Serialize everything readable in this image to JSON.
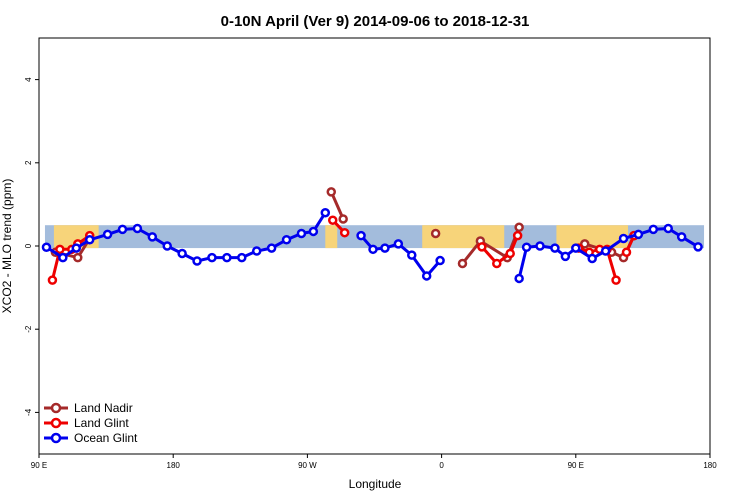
{
  "chart_data": {
    "type": "line",
    "title": "0-10N April (Ver 9)   2014-09-06 to 2018-12-31",
    "xlabel": "Longitude",
    "ylabel": "XCO2 - MLO trend (ppm)",
    "xlim": [
      0,
      45
    ],
    "ylim": [
      -5,
      5
    ],
    "x_ticks": [
      {
        "pos": 0,
        "label": "90 E"
      },
      {
        "pos": 9,
        "label": "180"
      },
      {
        "pos": 18,
        "label": "90 W"
      },
      {
        "pos": 27,
        "label": "0"
      },
      {
        "pos": 36,
        "label": "90 E"
      },
      {
        "pos": 45,
        "label": "180"
      }
    ],
    "y_ticks": [
      -4,
      -2,
      0,
      2,
      4
    ],
    "band": {
      "ymin": -0.05,
      "ymax": 0.5,
      "ocean_color": "#a3bcdc",
      "land_color": "#f7d47a"
    },
    "land_segments": [
      [
        1.0,
        4.0
      ],
      [
        19.2,
        20.0
      ],
      [
        25.7,
        31.2
      ],
      [
        34.7,
        39.5
      ]
    ],
    "legend_position": "bottom-left",
    "series": [
      {
        "name": "Land Nadir",
        "color": "#a52a2a",
        "segments": [
          [
            [
              1.1,
              -0.15
            ],
            [
              2.6,
              -0.28
            ],
            [
              3.4,
              0.18
            ]
          ],
          [
            [
              19.6,
              1.3
            ],
            [
              20.4,
              0.65
            ]
          ],
          [
            [
              26.6,
              0.3
            ]
          ],
          [
            [
              28.4,
              -0.42
            ],
            [
              29.6,
              0.12
            ],
            [
              31.4,
              -0.28
            ],
            [
              32.2,
              0.45
            ]
          ],
          [
            [
              36.6,
              0.05
            ],
            [
              38.4,
              -0.15
            ],
            [
              39.2,
              -0.28
            ],
            [
              39.9,
              0.25
            ]
          ]
        ]
      },
      {
        "name": "Land Glint",
        "color": "#ee0000",
        "segments": [
          [
            [
              0.9,
              -0.82
            ],
            [
              1.4,
              -0.08
            ],
            [
              2.2,
              -0.08
            ],
            [
              2.6,
              0.05
            ],
            [
              3.4,
              0.25
            ]
          ],
          [
            [
              19.7,
              0.62
            ],
            [
              20.5,
              0.32
            ]
          ],
          [
            [
              29.7,
              -0.02
            ],
            [
              30.7,
              -0.42
            ],
            [
              31.6,
              -0.18
            ],
            [
              32.1,
              0.25
            ]
          ],
          [
            [
              36.2,
              -0.05
            ],
            [
              36.9,
              -0.15
            ],
            [
              37.6,
              -0.08
            ],
            [
              38.1,
              -0.08
            ],
            [
              38.7,
              -0.82
            ]
          ],
          [
            [
              39.4,
              -0.15
            ],
            [
              39.9,
              0.25
            ]
          ]
        ]
      },
      {
        "name": "Ocean Glint",
        "color": "#0000ee",
        "segments": [
          [
            [
              0.5,
              -0.03
            ],
            [
              1.6,
              -0.28
            ],
            [
              2.5,
              -0.05
            ],
            [
              3.4,
              0.15
            ],
            [
              4.6,
              0.28
            ],
            [
              5.6,
              0.4
            ],
            [
              6.6,
              0.42
            ],
            [
              7.6,
              0.22
            ],
            [
              8.6,
              0.0
            ],
            [
              9.6,
              -0.18
            ],
            [
              10.6,
              -0.36
            ],
            [
              11.6,
              -0.28
            ],
            [
              12.6,
              -0.28
            ],
            [
              13.6,
              -0.28
            ],
            [
              14.6,
              -0.12
            ],
            [
              15.6,
              -0.05
            ],
            [
              16.6,
              0.15
            ],
            [
              17.6,
              0.3
            ],
            [
              18.4,
              0.35
            ],
            [
              19.2,
              0.8
            ]
          ],
          [
            [
              21.6,
              0.25
            ],
            [
              22.4,
              -0.08
            ],
            [
              23.2,
              -0.05
            ],
            [
              24.1,
              0.05
            ],
            [
              25.0,
              -0.22
            ],
            [
              26.0,
              -0.72
            ],
            [
              26.9,
              -0.35
            ]
          ],
          [
            [
              32.2,
              -0.78
            ],
            [
              32.7,
              -0.03
            ],
            [
              33.6,
              0.0
            ],
            [
              34.6,
              -0.05
            ],
            [
              35.3,
              -0.25
            ],
            [
              36.0,
              -0.05
            ],
            [
              37.1,
              -0.3
            ],
            [
              38.0,
              -0.12
            ],
            [
              39.2,
              0.18
            ],
            [
              40.2,
              0.28
            ],
            [
              41.2,
              0.4
            ],
            [
              42.2,
              0.42
            ],
            [
              43.1,
              0.22
            ],
            [
              44.2,
              -0.02
            ]
          ]
        ]
      }
    ]
  }
}
